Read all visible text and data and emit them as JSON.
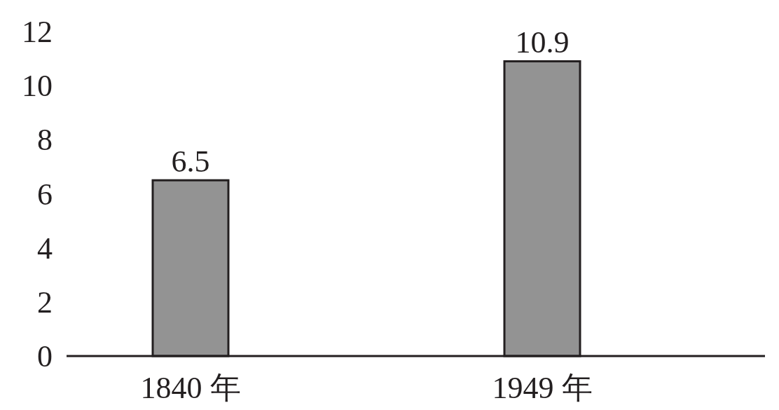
{
  "chart_data": {
    "type": "bar",
    "categories": [
      "1840 年",
      "1949 年"
    ],
    "values": [
      6.5,
      10.9
    ],
    "color": "#939393",
    "ylim": [
      0,
      12
    ],
    "yticks": [
      0,
      2,
      4,
      6,
      8,
      10,
      12
    ],
    "data_labels": true
  }
}
